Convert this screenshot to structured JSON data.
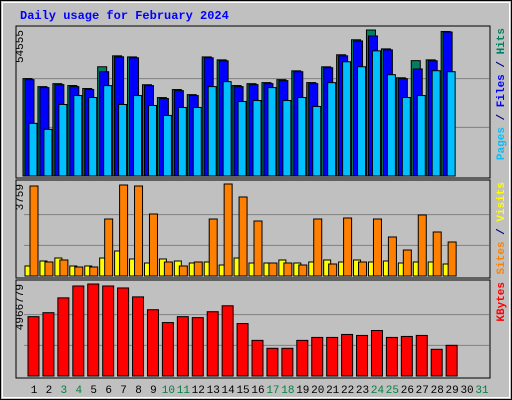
{
  "chart_data": [
    {
      "type": "bar",
      "title": "Daily usage for February 2024",
      "ylim": [
        0,
        54555
      ],
      "yticks": [
        54555
      ],
      "legend_separator": " / ",
      "series": [
        {
          "name": "Pages",
          "color": "#00c0ff",
          "values": [
            19670,
            17440,
            26720,
            30060,
            29320,
            33770,
            26720,
            30060,
            26350,
            22640,
            25610,
            25610,
            33400,
            35250,
            27830,
            28200,
            33030,
            28200,
            29320,
            25980,
            34880,
            42680,
            40820,
            46760,
            37850,
            29320,
            30060,
            39340,
            38970,
            null,
            null
          ]
        },
        {
          "name": "Files",
          "color": "#0000ff",
          "values": [
            36000,
            33030,
            34140,
            33400,
            32290,
            38970,
            44530,
            44160,
            33770,
            28950,
            31910,
            30060,
            44160,
            43050,
            33400,
            34140,
            34510,
            35630,
            38970,
            34510,
            40450,
            44900,
            50470,
            52330,
            47130,
            36370,
            40000,
            43050,
            53800,
            null,
            null
          ]
        },
        {
          "name": "Hits",
          "color": "#008060",
          "values": [
            36400,
            33400,
            34500,
            33800,
            32700,
            40820,
            44900,
            44500,
            34100,
            29300,
            32300,
            30400,
            44500,
            43400,
            33800,
            34500,
            34900,
            36000,
            39300,
            34900,
            40800,
            45300,
            50900,
            54555,
            47500,
            36700,
            43100,
            43400,
            54000,
            null,
            null
          ]
        }
      ]
    },
    {
      "type": "bar",
      "ylim": [
        0,
        3759
      ],
      "yticks": [
        3759
      ],
      "legend_separator": " / ",
      "series": [
        {
          "name": "Sites",
          "color": "#ff8000",
          "values": [
            3677,
            572,
            654,
            368,
            368,
            2329,
            3718,
            3677,
            2533,
            572,
            409,
            572,
            2329,
            3759,
            3228,
            2247,
            531,
            531,
            449,
            2329,
            490,
            2370,
            572,
            2329,
            1594,
            1062,
            2493,
            1798,
            1389,
            null,
            null
          ]
        },
        {
          "name": "Visits",
          "color": "#ffff00",
          "values": [
            409,
            613,
            735,
            409,
            409,
            735,
            1022,
            695,
            531,
            695,
            613,
            531,
            572,
            449,
            735,
            531,
            531,
            654,
            531,
            572,
            654,
            572,
            654,
            572,
            613,
            531,
            572,
            572,
            490,
            null,
            null
          ]
        }
      ]
    },
    {
      "type": "bar",
      "ylim": [
        0,
        4966779
      ],
      "yticks": [
        4966779
      ],
      "categories": [
        "1",
        "2",
        "3",
        "4",
        "5",
        "6",
        "7",
        "8",
        "9",
        "10",
        "11",
        "12",
        "13",
        "14",
        "15",
        "16",
        "17",
        "18",
        "19",
        "20",
        "21",
        "22",
        "23",
        "24",
        "25",
        "26",
        "27",
        "28",
        "29",
        "30",
        "31"
      ],
      "category_colors": [
        "#000000",
        "#000000",
        "#008040",
        "#008040",
        "#000000",
        "#000000",
        "#000000",
        "#000000",
        "#000000",
        "#008040",
        "#008040",
        "#000000",
        "#000000",
        "#000000",
        "#000000",
        "#000000",
        "#008040",
        "#008040",
        "#000000",
        "#000000",
        "#000000",
        "#000000",
        "#000000",
        "#008040",
        "#008040",
        "#000000",
        "#000000",
        "#000000",
        "#000000",
        "#000000",
        "#008040"
      ],
      "series": [
        {
          "name": "KBytes",
          "color": "#ff0000",
          "values": [
            3204000,
            3418000,
            4219000,
            4860000,
            4966779,
            4860000,
            4753000,
            4272000,
            3578000,
            2884000,
            3204000,
            3151000,
            3471000,
            3792000,
            2831000,
            1923000,
            1495000,
            1495000,
            1923000,
            2083000,
            2083000,
            2243000,
            2190000,
            2457000,
            2083000,
            2136000,
            2190000,
            1442000,
            1656000,
            null,
            null
          ]
        }
      ]
    }
  ]
}
